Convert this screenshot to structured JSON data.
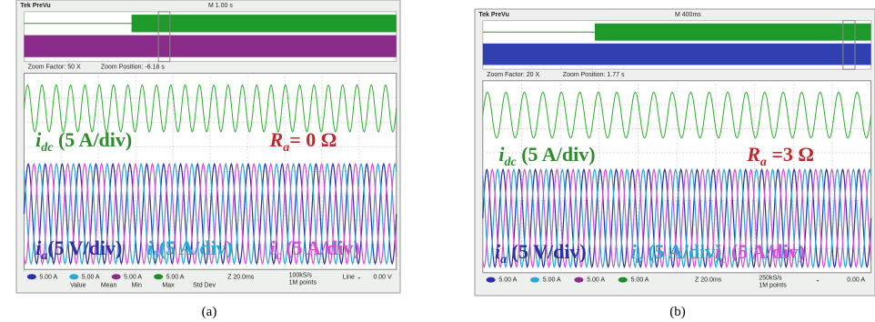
{
  "panels": [
    {
      "header": {
        "brand": "Tek PreVu",
        "timebase": "M 1.00 s"
      },
      "zoom": {
        "factor": "Zoom Factor: 50 X",
        "position": "Zoom Position: -6.18 s"
      },
      "labels": [
        {
          "symbol": "i",
          "sub": "dc",
          "text": " (5 A/div)",
          "color": "#2e8b2e"
        },
        {
          "symbol": "R",
          "sub": "a",
          "text": "= 0 Ω",
          "color": "#c0282d"
        },
        {
          "symbol": "i",
          "sub": "a",
          "text": "(5 V/div)",
          "color": "#2b2fa8"
        },
        {
          "symbol": "i",
          "sub": "b",
          "text": "(5 A/div)",
          "color": "#2aa6d9"
        },
        {
          "symbol": "i",
          "sub": "c",
          "text": " (5 A/div)",
          "color": "#d64fd0"
        }
      ],
      "footer": {
        "channels": [
          "5.00 A",
          "5.00 A",
          "5.00 A",
          "5.00 A"
        ],
        "stats": [
          "Value",
          "Mean",
          "Min",
          "Max",
          "Std Dev"
        ],
        "zoom_time": "Z 20.0ms",
        "rate": "100kS/s",
        "points": "1M points",
        "trigger": "Line ⌄",
        "trigger_value": "0.00 V"
      },
      "caption": "(a)"
    },
    {
      "header": {
        "brand": "Tek PreVu",
        "timebase": "M 400ms"
      },
      "zoom": {
        "factor": "Zoom Factor: 20 X",
        "position": "Zoom Position: 1.77 s"
      },
      "labels": [
        {
          "symbol": "i",
          "sub": "dc",
          "text": "  (5 A/div)",
          "color": "#2e8b2e"
        },
        {
          "symbol": "R",
          "sub": "a",
          "text": " =3 Ω",
          "color": "#c0282d"
        },
        {
          "symbol": "i",
          "sub": "a",
          "text": "  (5 V/div)",
          "color": "#2b2fa8"
        },
        {
          "symbol": "i",
          "sub": "b",
          "text": " (5 A/div)",
          "color": "#2aa6d9"
        },
        {
          "symbol": "i",
          "sub": "c",
          "text": "  (5 A/div)",
          "color": "#d64fd0"
        }
      ],
      "footer": {
        "channels": [
          "5.00 A",
          "5.00 A",
          "5.00 A",
          "5.00 A"
        ],
        "stats": [],
        "zoom_time": "Z 20.0ms",
        "rate": "250kS/s",
        "points": "1M points",
        "trigger": "⌄",
        "trigger_value": "0.00 A"
      },
      "caption": "(b)"
    }
  ]
}
